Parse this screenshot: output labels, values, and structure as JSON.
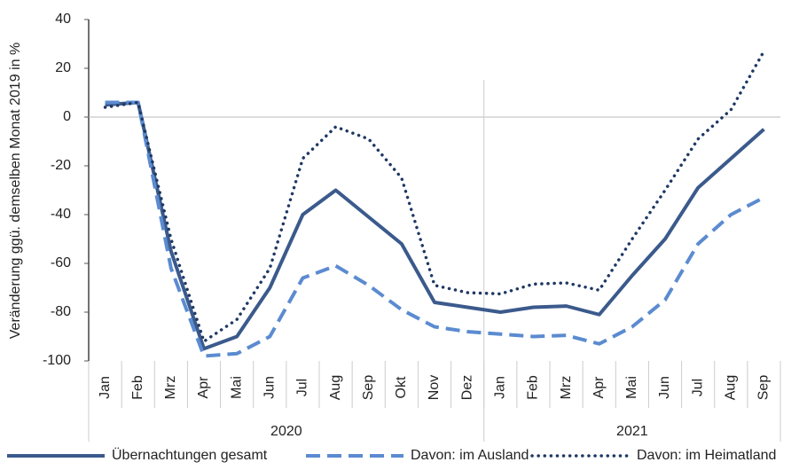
{
  "chart_data": {
    "type": "line",
    "y_label": "Veränderung ggü. demselben Monat 2019 in %",
    "groups": [
      {
        "name": "2020",
        "categories": [
          "Jan",
          "Feb",
          "Mrz",
          "Apr",
          "Mai",
          "Jun",
          "Jul",
          "Aug",
          "Sep",
          "Okt",
          "Nov",
          "Dez"
        ]
      },
      {
        "name": "2021",
        "categories": [
          "Jan",
          "Feb",
          "Mrz",
          "Apr",
          "Mai",
          "Jun",
          "Jul",
          "Aug",
          "Sep"
        ]
      }
    ],
    "series": [
      {
        "name": "Übernachtungen gesamt",
        "color": "#3b5a8c",
        "dash": "solid",
        "values": [
          5,
          6,
          -55,
          -95,
          -90,
          -70,
          -40,
          -30,
          -41,
          -52,
          -76,
          -78,
          -80,
          -78,
          -77.5,
          -81,
          -65,
          -50,
          -29,
          -17,
          -5
        ]
      },
      {
        "name": "Davon: im Ausland",
        "color": "#5b8bd0",
        "dash": "dashed",
        "values": [
          6,
          6,
          -62,
          -98,
          -97,
          -90,
          -66,
          -61,
          -69,
          -79,
          -86,
          -88,
          -89,
          -90,
          -89.5,
          -93,
          -86,
          -75,
          -52,
          -40,
          -33
        ]
      },
      {
        "name": "Davon: im Heimatland",
        "color": "#1f3864",
        "dash": "dotted",
        "values": [
          4,
          6,
          -50,
          -92,
          -83,
          -62,
          -17,
          -4,
          -9,
          -25,
          -69,
          -72,
          -72.5,
          -68.5,
          -68,
          -71,
          -50,
          -30,
          -9,
          3,
          27
        ]
      }
    ],
    "ylim": [
      -100,
      40
    ],
    "yticks": [
      -100,
      -80,
      -60,
      -40,
      -20,
      0,
      20,
      40
    ]
  }
}
